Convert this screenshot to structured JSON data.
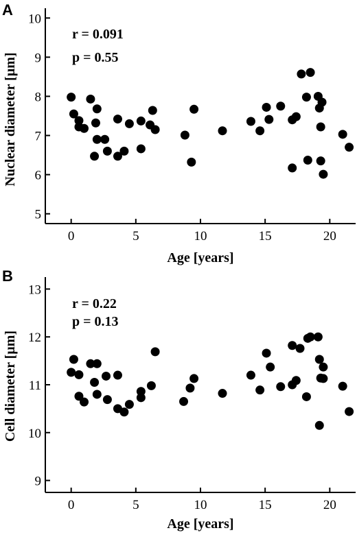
{
  "chart_data": [
    {
      "type": "scatter",
      "panel": "A",
      "xlabel": "Age [years]",
      "ylabel": "Nuclear diameter [µm]",
      "xlim": [
        -2,
        22
      ],
      "ylim": [
        4.75,
        10.25
      ],
      "xticks": [
        0,
        5,
        10,
        15,
        20
      ],
      "yticks": [
        5,
        6,
        7,
        8,
        9,
        10
      ],
      "annotations": [
        "r = 0.091",
        "p = 0.55"
      ],
      "points": [
        [
          0.0,
          7.98
        ],
        [
          0.2,
          7.55
        ],
        [
          0.6,
          7.38
        ],
        [
          0.6,
          7.22
        ],
        [
          1.0,
          7.18
        ],
        [
          1.5,
          7.93
        ],
        [
          2.0,
          7.68
        ],
        [
          1.9,
          7.32
        ],
        [
          2.0,
          6.9
        ],
        [
          1.8,
          6.47
        ],
        [
          2.6,
          6.9
        ],
        [
          2.8,
          6.6
        ],
        [
          3.6,
          7.42
        ],
        [
          3.6,
          6.47
        ],
        [
          4.1,
          6.6
        ],
        [
          4.5,
          7.3
        ],
        [
          5.4,
          7.37
        ],
        [
          5.4,
          6.66
        ],
        [
          6.1,
          7.27
        ],
        [
          6.3,
          7.64
        ],
        [
          6.5,
          7.15
        ],
        [
          8.8,
          7.01
        ],
        [
          9.3,
          6.32
        ],
        [
          9.5,
          7.67
        ],
        [
          11.7,
          7.12
        ],
        [
          13.9,
          7.36
        ],
        [
          14.6,
          7.12
        ],
        [
          15.1,
          7.72
        ],
        [
          15.3,
          7.41
        ],
        [
          16.2,
          7.75
        ],
        [
          17.1,
          7.4
        ],
        [
          17.1,
          6.17
        ],
        [
          17.4,
          7.48
        ],
        [
          17.8,
          8.57
        ],
        [
          18.2,
          7.98
        ],
        [
          18.3,
          6.37
        ],
        [
          18.5,
          8.61
        ],
        [
          19.1,
          8.0
        ],
        [
          19.2,
          7.7
        ],
        [
          19.3,
          7.22
        ],
        [
          19.3,
          6.35
        ],
        [
          19.4,
          7.85
        ],
        [
          19.5,
          6.01
        ],
        [
          21.0,
          7.03
        ],
        [
          21.5,
          6.7
        ]
      ]
    },
    {
      "type": "scatter",
      "panel": "B",
      "xlabel": "Age [years]",
      "ylabel": "Cell diameter [µm]",
      "xlim": [
        -2,
        22
      ],
      "ylim": [
        8.75,
        13.25
      ],
      "xticks": [
        0,
        5,
        10,
        15,
        20
      ],
      "yticks": [
        9,
        10,
        11,
        12,
        13
      ],
      "annotations": [
        "r = 0.22",
        "p = 0.13"
      ],
      "points": [
        [
          0.0,
          11.26
        ],
        [
          0.2,
          11.53
        ],
        [
          0.6,
          11.21
        ],
        [
          0.6,
          10.76
        ],
        [
          1.0,
          10.64
        ],
        [
          1.5,
          11.44
        ],
        [
          2.0,
          11.44
        ],
        [
          1.8,
          11.05
        ],
        [
          2.0,
          10.8
        ],
        [
          2.7,
          11.18
        ],
        [
          2.8,
          10.69
        ],
        [
          3.6,
          11.2
        ],
        [
          3.6,
          10.5
        ],
        [
          4.1,
          10.43
        ],
        [
          4.5,
          10.59
        ],
        [
          5.4,
          10.86
        ],
        [
          5.4,
          10.73
        ],
        [
          6.2,
          10.98
        ],
        [
          6.5,
          11.69
        ],
        [
          8.7,
          10.65
        ],
        [
          9.2,
          10.93
        ],
        [
          9.5,
          11.13
        ],
        [
          11.7,
          10.82
        ],
        [
          13.9,
          11.2
        ],
        [
          14.6,
          10.89
        ],
        [
          15.1,
          11.66
        ],
        [
          15.4,
          11.37
        ],
        [
          16.2,
          10.96
        ],
        [
          17.1,
          11.0
        ],
        [
          17.1,
          11.82
        ],
        [
          17.4,
          11.09
        ],
        [
          17.7,
          11.76
        ],
        [
          18.2,
          10.75
        ],
        [
          18.3,
          11.97
        ],
        [
          18.5,
          12.0
        ],
        [
          19.1,
          12.0
        ],
        [
          19.2,
          11.53
        ],
        [
          19.3,
          11.14
        ],
        [
          19.2,
          10.15
        ],
        [
          19.5,
          11.37
        ],
        [
          19.5,
          11.13
        ],
        [
          21.0,
          10.97
        ],
        [
          21.5,
          10.44
        ]
      ]
    }
  ]
}
